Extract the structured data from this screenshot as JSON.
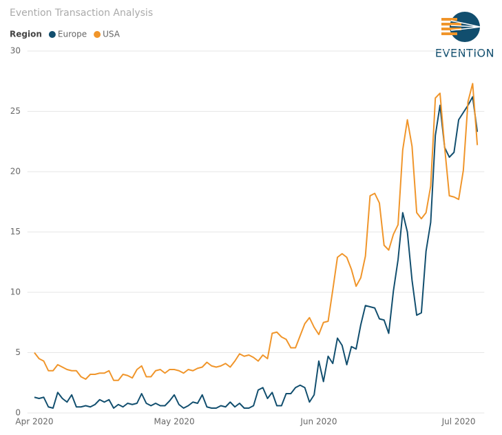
{
  "chart_data": {
    "type": "line",
    "title": "Evention Transaction Analysis",
    "legend_title": "Region",
    "logo": "EVENTION",
    "x": [
      0,
      1,
      2,
      3,
      4,
      5,
      6,
      7,
      8,
      9,
      10,
      11,
      12,
      13,
      14,
      15,
      16,
      17,
      18,
      19,
      20,
      21,
      22,
      23,
      24,
      25,
      26,
      27,
      28,
      29,
      30,
      31,
      32,
      33,
      34,
      35,
      36,
      37,
      38,
      39,
      40,
      41,
      42,
      43,
      44,
      45,
      46,
      47,
      48,
      49,
      50,
      51,
      52,
      53,
      54,
      55,
      56,
      57,
      58,
      59,
      60,
      61,
      62,
      63,
      64,
      65,
      66,
      67,
      68,
      69,
      70,
      71,
      72,
      73,
      74,
      75,
      76,
      77,
      78,
      79,
      80,
      81,
      82,
      83,
      84,
      85,
      86,
      87,
      88,
      89,
      90,
      91,
      92,
      93,
      94,
      95
    ],
    "series": [
      {
        "name": "Europe",
        "color": "#114e6e",
        "values": [
          1.3,
          1.2,
          1.3,
          0.5,
          0.4,
          1.7,
          1.2,
          0.9,
          1.5,
          0.5,
          0.5,
          0.6,
          0.5,
          0.7,
          1.1,
          0.9,
          1.1,
          0.4,
          0.7,
          0.5,
          0.8,
          0.7,
          0.8,
          1.6,
          0.8,
          0.6,
          0.8,
          0.6,
          0.6,
          1.0,
          1.5,
          0.7,
          0.4,
          0.6,
          0.9,
          0.8,
          1.5,
          0.5,
          0.4,
          0.4,
          0.6,
          0.5,
          0.9,
          0.5,
          0.8,
          0.4,
          0.4,
          0.6,
          1.9,
          2.1,
          1.2,
          1.7,
          0.6,
          0.6,
          1.6,
          1.6,
          2.1,
          2.3,
          2.1,
          0.9,
          1.5,
          4.3,
          2.6,
          4.7,
          4.1,
          6.2,
          5.6,
          4.0,
          5.5,
          5.3,
          7.3,
          8.9,
          8.8,
          8.7,
          7.8,
          7.7,
          6.6,
          10.1,
          12.7,
          16.6,
          15.0,
          11.0,
          8.1,
          8.3,
          13.4,
          15.8,
          23.0,
          25.5,
          22.0,
          21.2,
          21.6,
          24.3,
          24.9,
          25.5,
          26.2,
          23.3
        ]
      },
      {
        "name": "USA",
        "color": "#f0952a",
        "values": [
          5.0,
          4.5,
          4.3,
          3.5,
          3.5,
          4.0,
          3.8,
          3.6,
          3.5,
          3.5,
          3.0,
          2.8,
          3.2,
          3.2,
          3.3,
          3.3,
          3.5,
          2.7,
          2.7,
          3.2,
          3.1,
          2.9,
          3.6,
          3.9,
          3.0,
          3.0,
          3.5,
          3.6,
          3.3,
          3.6,
          3.6,
          3.5,
          3.3,
          3.6,
          3.5,
          3.7,
          3.8,
          4.2,
          3.9,
          3.8,
          3.9,
          4.1,
          3.8,
          4.3,
          4.9,
          4.7,
          4.8,
          4.6,
          4.3,
          4.8,
          4.5,
          6.6,
          6.7,
          6.3,
          6.1,
          5.4,
          5.4,
          6.4,
          7.4,
          7.9,
          7.1,
          6.5,
          7.5,
          7.6,
          10.2,
          12.9,
          13.2,
          12.9,
          11.9,
          10.5,
          11.2,
          13.0,
          18.0,
          18.2,
          17.4,
          13.9,
          13.5,
          14.8,
          15.6,
          21.8,
          24.3,
          22.1,
          16.6,
          16.1,
          16.6,
          18.8,
          26.1,
          26.5,
          22.0,
          18.0,
          17.9,
          17.7,
          20.1,
          25.8,
          27.3,
          22.2
        ]
      }
    ],
    "xlim": [
      -1.5,
      96.5
    ],
    "xticks": [
      {
        "value": 0,
        "label": "Apr 2020"
      },
      {
        "value": 30,
        "label": "May 2020"
      },
      {
        "value": 61,
        "label": "Jun 2020"
      },
      {
        "value": 91,
        "label": "Jul 2020"
      }
    ],
    "ylim": [
      0,
      30
    ],
    "yticks": [
      0,
      5,
      10,
      15,
      20,
      25,
      30
    ],
    "grid": true
  }
}
